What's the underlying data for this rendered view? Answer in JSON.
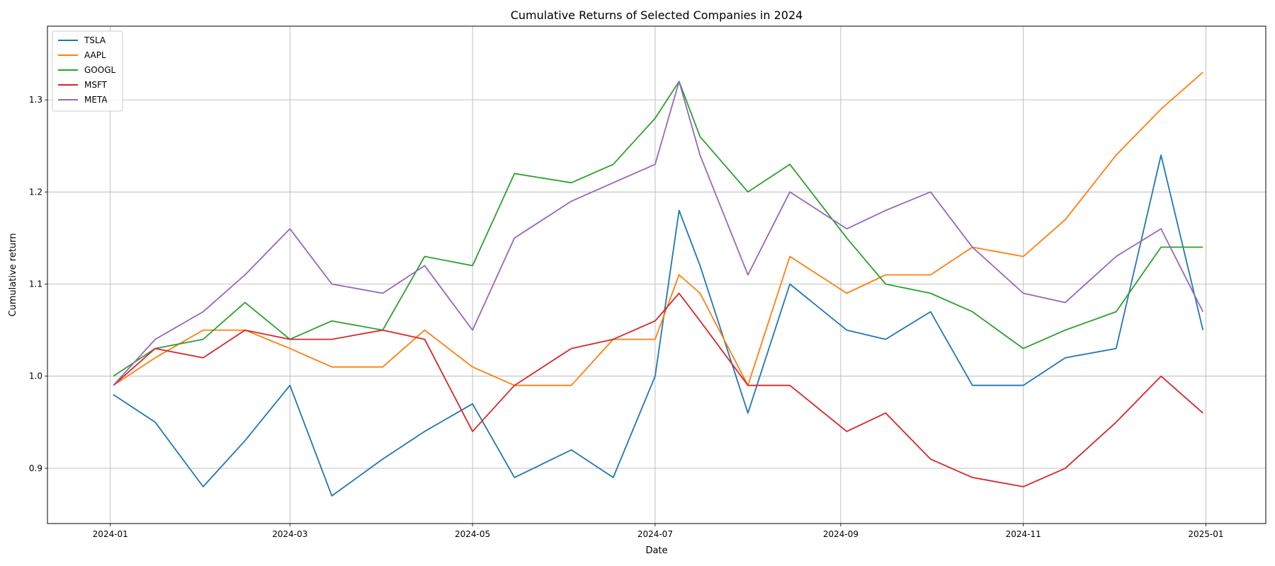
{
  "chart_data": {
    "type": "line",
    "title": "Cumulative Returns of Selected Companies in 2024",
    "xlabel": "Date",
    "ylabel": "Cumulative return",
    "x_ticks": [
      "2024-01",
      "2024-03",
      "2024-05",
      "2024-07",
      "2024-09",
      "2024-11",
      "2025-01"
    ],
    "y_ticks": [
      "0.9",
      "1.0",
      "1.1",
      "1.2",
      "1.3"
    ],
    "xlim": [
      "2023-12-11",
      "2025-01-21"
    ],
    "ylim": [
      0.84,
      1.38
    ],
    "grid": true,
    "legend_position": "top-left",
    "x": [
      "2024-01-02",
      "2024-01-16",
      "2024-02-01",
      "2024-02-15",
      "2024-03-01",
      "2024-03-15",
      "2024-04-01",
      "2024-04-15",
      "2024-05-01",
      "2024-05-15",
      "2024-06-03",
      "2024-06-17",
      "2024-07-01",
      "2024-07-09",
      "2024-07-16",
      "2024-08-01",
      "2024-08-15",
      "2024-09-03",
      "2024-09-16",
      "2024-10-01",
      "2024-10-15",
      "2024-11-01",
      "2024-11-15",
      "2024-12-02",
      "2024-12-17",
      "2024-12-31"
    ],
    "series": [
      {
        "name": "TSLA",
        "color": "#1f77b4",
        "values": [
          0.98,
          0.95,
          0.88,
          0.93,
          0.99,
          0.87,
          0.91,
          0.94,
          0.97,
          0.89,
          0.92,
          0.89,
          1.0,
          1.18,
          1.12,
          0.96,
          1.1,
          1.05,
          1.04,
          1.07,
          0.99,
          0.99,
          1.02,
          1.03,
          1.24,
          1.05
        ]
      },
      {
        "name": "AAPL",
        "color": "#ff7f0e",
        "values": [
          0.99,
          1.02,
          1.05,
          1.05,
          1.03,
          1.01,
          1.01,
          1.05,
          1.01,
          0.99,
          0.99,
          1.04,
          1.04,
          1.11,
          1.09,
          0.99,
          1.13,
          1.09,
          1.11,
          1.11,
          1.14,
          1.13,
          1.17,
          1.24,
          1.29,
          1.33
        ]
      },
      {
        "name": "GOOGL",
        "color": "#2ca02c",
        "values": [
          1.0,
          1.03,
          1.04,
          1.08,
          1.04,
          1.06,
          1.05,
          1.13,
          1.12,
          1.22,
          1.21,
          1.23,
          1.28,
          1.32,
          1.26,
          1.2,
          1.23,
          1.15,
          1.1,
          1.09,
          1.07,
          1.03,
          1.05,
          1.07,
          1.14,
          1.14
        ]
      },
      {
        "name": "MSFT",
        "color": "#d62728",
        "values": [
          0.99,
          1.03,
          1.02,
          1.05,
          1.04,
          1.04,
          1.05,
          1.04,
          0.94,
          0.99,
          1.03,
          1.04,
          1.06,
          1.09,
          1.06,
          0.99,
          0.99,
          0.94,
          0.96,
          0.91,
          0.89,
          0.88,
          0.9,
          0.95,
          1.0,
          0.96
        ]
      },
      {
        "name": "META",
        "color": "#9467bd",
        "values": [
          0.99,
          1.04,
          1.07,
          1.11,
          1.16,
          1.1,
          1.09,
          1.12,
          1.05,
          1.15,
          1.19,
          1.21,
          1.23,
          1.32,
          1.24,
          1.11,
          1.2,
          1.16,
          1.18,
          1.2,
          1.14,
          1.09,
          1.08,
          1.13,
          1.16,
          1.07
        ]
      }
    ]
  }
}
